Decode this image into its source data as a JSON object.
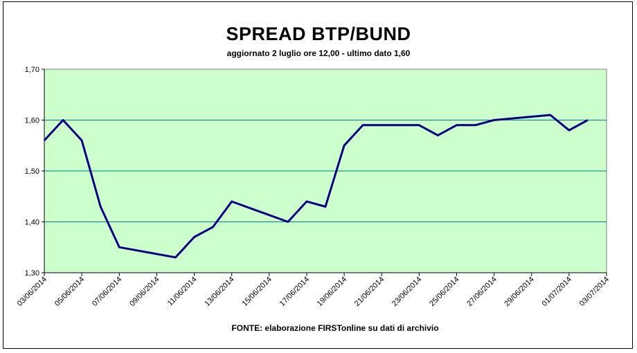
{
  "chart_data": {
    "type": "line",
    "title": "SPREAD BTP/BUND",
    "subtitle": "aggiornato 2 luglio ore 12,00 - ultimo dato 1,60",
    "source_note": "FONTE:  elaborazione FIRSTonline su dati di archivio",
    "xlabel": "",
    "ylabel": "",
    "ylim": [
      1.3,
      1.7
    ],
    "yticks": [
      "1,30",
      "1,40",
      "1,50",
      "1,60",
      "1,70"
    ],
    "xticks": [
      "03/06/2014",
      "05/06/2014",
      "07/06/2014",
      "09/06/2014",
      "11/06/2014",
      "13/06/2014",
      "15/06/2014",
      "17/06/2014",
      "19/06/2014",
      "21/06/2014",
      "23/06/2014",
      "25/06/2014",
      "27/06/2014",
      "29/06/2014",
      "01/07/2014",
      "03/07/2014"
    ],
    "grid": true,
    "plot_background": "#ccffcc",
    "line_color": "#000080",
    "gridline_color": "#008080",
    "series": [
      {
        "x": [
          "03/06/2014",
          "04/06/2014",
          "05/06/2014",
          "06/06/2014",
          "07/06/2014",
          "10/06/2014",
          "11/06/2014",
          "12/06/2014",
          "13/06/2014",
          "16/06/2014",
          "17/06/2014",
          "18/06/2014",
          "19/06/2014",
          "20/06/2014",
          "23/06/2014",
          "24/06/2014",
          "25/06/2014",
          "26/06/2014",
          "27/06/2014",
          "30/06/2014",
          "01/07/2014",
          "02/07/2014"
        ],
        "values": [
          1.56,
          1.6,
          1.56,
          1.43,
          1.35,
          1.33,
          1.37,
          1.39,
          1.44,
          1.4,
          1.44,
          1.43,
          1.55,
          1.59,
          1.59,
          1.57,
          1.59,
          1.59,
          1.6,
          1.61,
          1.58,
          1.6
        ]
      }
    ],
    "points_px_hint": "computed in script"
  }
}
